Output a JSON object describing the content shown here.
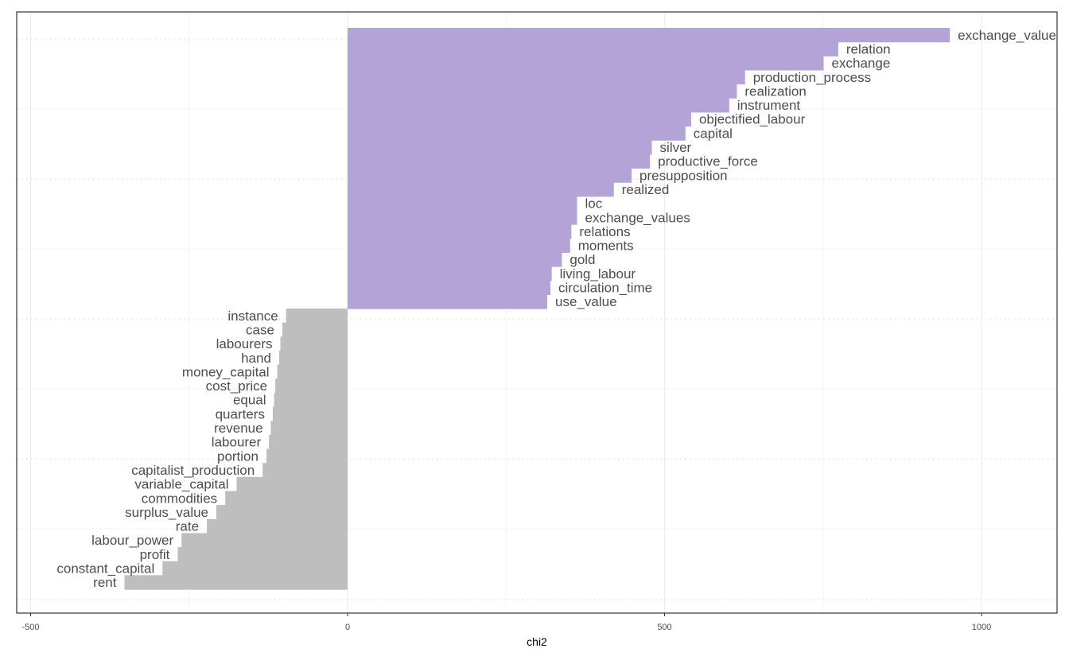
{
  "chart_data": {
    "type": "bar",
    "orientation": "horizontal",
    "title": "",
    "xlabel": "chi2",
    "ylabel": "",
    "xlim": [
      -500,
      1120
    ],
    "xticks": [
      -500,
      0,
      500,
      1000
    ],
    "xtick_labels": [
      "-500",
      "0",
      "500",
      "1000"
    ],
    "grid": true,
    "legend": "none",
    "colors": {
      "target": "#b3a3d6",
      "reference": "#bebebe"
    },
    "series": [
      {
        "group": "target",
        "categories": [
          "exchange_value",
          "relation",
          "exchange",
          "production_process",
          "realization",
          "instrument",
          "objectified_labour",
          "capital",
          "silver",
          "productive_force",
          "presupposition",
          "realized",
          "loc",
          "exchange_values",
          "relations",
          "moments",
          "gold",
          "living_labour",
          "circulation_time",
          "use_value"
        ],
        "values": [
          950,
          774,
          751,
          627,
          614,
          602,
          542,
          533,
          480,
          477,
          448,
          420,
          362,
          362,
          353,
          351,
          338,
          322,
          320,
          315
        ]
      },
      {
        "group": "reference",
        "categories": [
          "instance",
          "case",
          "labourers",
          "hand",
          "money_capital",
          "cost_price",
          "equal",
          "quarters",
          "revenue",
          "labourer",
          "portion",
          "capitalist_production",
          "variable_capital",
          "commodities",
          "surplus_value",
          "rate",
          "labour_power",
          "profit",
          "constant_capital",
          "rent"
        ],
        "values": [
          -97,
          -103,
          -106,
          -108,
          -111,
          -114,
          -116,
          -118,
          -121,
          -124,
          -128,
          -134,
          -175,
          -193,
          -207,
          -222,
          -262,
          -268,
          -292,
          -352
        ]
      }
    ]
  }
}
